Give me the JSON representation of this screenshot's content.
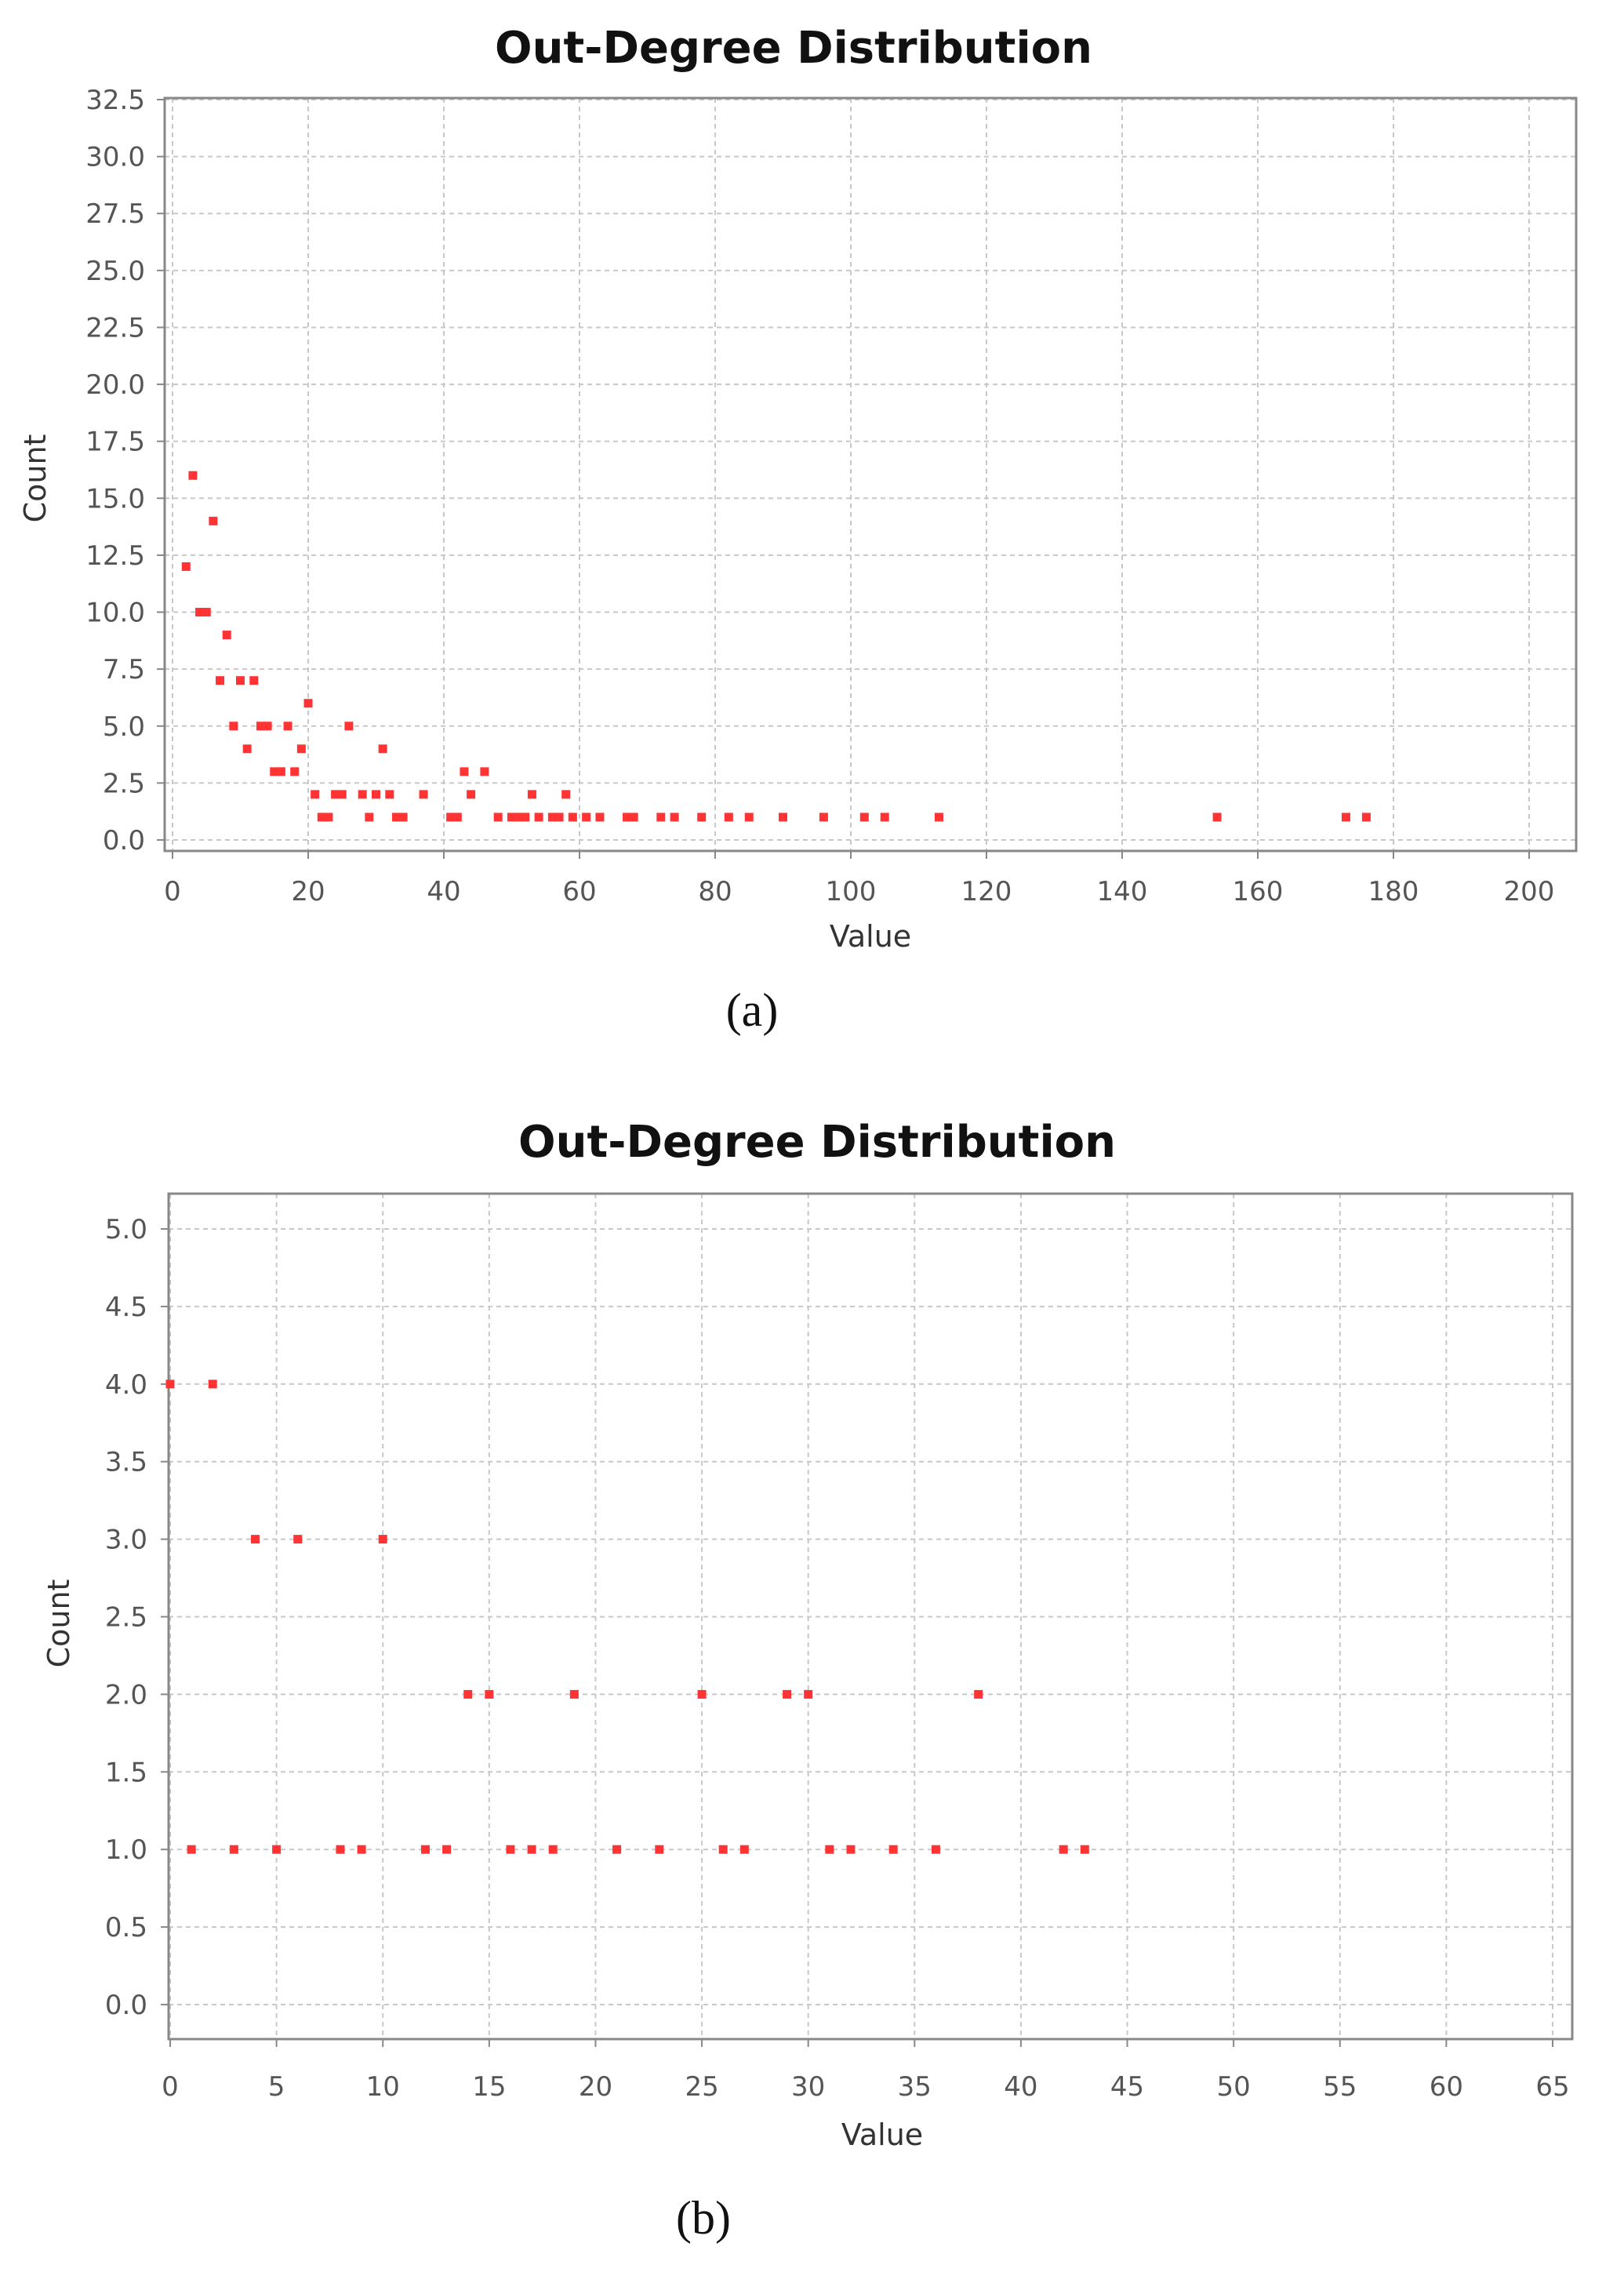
{
  "chart_data": [
    {
      "type": "scatter",
      "title": "Out-Degree Distribution",
      "xlabel": "Value",
      "ylabel": "Count",
      "caption": "(a)",
      "xlim": [
        0,
        210
      ],
      "ylim": [
        0,
        32.5
      ],
      "xticks": [
        "0",
        "20",
        "40",
        "60",
        "80",
        "100",
        "120",
        "140",
        "160",
        "180",
        "200"
      ],
      "yticks": [
        "0.0",
        "2.5",
        "5.0",
        "7.5",
        "10.0",
        "12.5",
        "15.0",
        "17.5",
        "20.0",
        "22.5",
        "25.0",
        "27.5",
        "30.0",
        "32.5"
      ],
      "grid": true,
      "marker_color": "#ff3333",
      "points": [
        [
          2,
          12
        ],
        [
          3,
          16
        ],
        [
          4,
          10
        ],
        [
          5,
          10
        ],
        [
          6,
          14
        ],
        [
          7,
          7
        ],
        [
          8,
          9
        ],
        [
          9,
          5
        ],
        [
          10,
          7
        ],
        [
          11,
          4
        ],
        [
          12,
          7
        ],
        [
          13,
          5
        ],
        [
          14,
          5
        ],
        [
          15,
          3
        ],
        [
          16,
          3
        ],
        [
          17,
          5
        ],
        [
          18,
          3
        ],
        [
          19,
          4
        ],
        [
          20,
          6
        ],
        [
          21,
          2
        ],
        [
          22,
          1
        ],
        [
          23,
          1
        ],
        [
          24,
          2
        ],
        [
          25,
          2
        ],
        [
          26,
          5
        ],
        [
          28,
          2
        ],
        [
          29,
          1
        ],
        [
          30,
          2
        ],
        [
          31,
          4
        ],
        [
          32,
          2
        ],
        [
          33,
          1
        ],
        [
          34,
          1
        ],
        [
          37,
          2
        ],
        [
          41,
          1
        ],
        [
          42,
          1
        ],
        [
          43,
          3
        ],
        [
          44,
          2
        ],
        [
          46,
          3
        ],
        [
          48,
          1
        ],
        [
          50,
          1
        ],
        [
          51,
          1
        ],
        [
          52,
          1
        ],
        [
          53,
          2
        ],
        [
          54,
          1
        ],
        [
          56,
          1
        ],
        [
          57,
          1
        ],
        [
          58,
          2
        ],
        [
          59,
          1
        ],
        [
          61,
          1
        ],
        [
          63,
          1
        ],
        [
          67,
          1
        ],
        [
          68,
          1
        ],
        [
          72,
          1
        ],
        [
          74,
          1
        ],
        [
          78,
          1
        ],
        [
          82,
          1
        ],
        [
          85,
          1
        ],
        [
          90,
          1
        ],
        [
          96,
          1
        ],
        [
          102,
          1
        ],
        [
          105,
          1
        ],
        [
          113,
          1
        ],
        [
          154,
          1
        ],
        [
          173,
          1
        ],
        [
          176,
          1
        ]
      ]
    },
    {
      "type": "scatter",
      "title": "Out-Degree Distribution",
      "xlabel": "Value",
      "ylabel": "Count",
      "caption": "(b)",
      "xlim": [
        0,
        66
      ],
      "ylim": [
        -0.2,
        5.2
      ],
      "xticks": [
        "0",
        "5",
        "10",
        "15",
        "20",
        "25",
        "30",
        "35",
        "40",
        "45",
        "50",
        "55",
        "60",
        "65"
      ],
      "yticks": [
        "0.0",
        "0.5",
        "1.0",
        "1.5",
        "2.0",
        "2.5",
        "3.0",
        "3.5",
        "4.0",
        "4.5",
        "5.0"
      ],
      "grid": true,
      "marker_color": "#ff3333",
      "points": [
        [
          0,
          4
        ],
        [
          1,
          1
        ],
        [
          2,
          4
        ],
        [
          3,
          1
        ],
        [
          4,
          3
        ],
        [
          5,
          1
        ],
        [
          6,
          3
        ],
        [
          8,
          1
        ],
        [
          9,
          1
        ],
        [
          10,
          3
        ],
        [
          12,
          1
        ],
        [
          13,
          1
        ],
        [
          14,
          2
        ],
        [
          15,
          2
        ],
        [
          16,
          1
        ],
        [
          17,
          1
        ],
        [
          18,
          1
        ],
        [
          19,
          2
        ],
        [
          21,
          1
        ],
        [
          23,
          1
        ],
        [
          25,
          2
        ],
        [
          26,
          1
        ],
        [
          27,
          1
        ],
        [
          29,
          2
        ],
        [
          30,
          2
        ],
        [
          31,
          1
        ],
        [
          32,
          1
        ],
        [
          34,
          1
        ],
        [
          36,
          1
        ],
        [
          38,
          2
        ],
        [
          42,
          1
        ],
        [
          43,
          1
        ]
      ]
    }
  ]
}
